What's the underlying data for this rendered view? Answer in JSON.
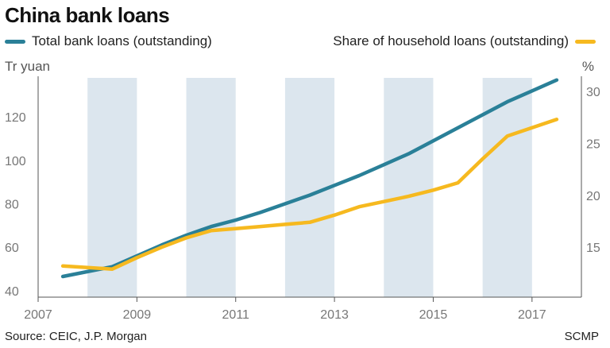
{
  "header": {
    "title": "China bank loans",
    "unit_left": "Tr yuan",
    "unit_right": "%"
  },
  "footer": {
    "source": "Source: CEIC, J.P. Morgan",
    "brand": "SCMP"
  },
  "colors": {
    "total": "#2a8098",
    "household": "#f6b91f",
    "band": "#dce6ee",
    "axis": "#555555"
  },
  "chart_data": {
    "type": "line",
    "x_ticks": [
      "2007",
      "2009",
      "2011",
      "2013",
      "2015",
      "2017"
    ],
    "y_left_ticks": [
      "40",
      "60",
      "80",
      "100",
      "120"
    ],
    "y_right_ticks": [
      "15",
      "20",
      "25",
      "30"
    ],
    "ylim_left": [
      37,
      138
    ],
    "ylim_right": [
      10.2,
      31.3
    ],
    "xlim": [
      2007,
      2018
    ],
    "shaded_bands": [
      [
        2008,
        2009
      ],
      [
        2010,
        2011
      ],
      [
        2012,
        2013
      ],
      [
        2014,
        2015
      ],
      [
        2016,
        2017
      ]
    ],
    "series": [
      {
        "name": "Total bank loans (outstanding)",
        "axis": "left",
        "color": "#2a8098",
        "x": [
          2007.5,
          2008.5,
          2009.0,
          2009.5,
          2010.0,
          2010.5,
          2011.0,
          2011.5,
          2012.0,
          2012.5,
          2013.0,
          2013.5,
          2014.0,
          2014.5,
          2015.0,
          2015.5,
          2016.0,
          2016.5,
          2017.0,
          2017.5
        ],
        "values": [
          46.5,
          51,
          56,
          61,
          65.5,
          69.5,
          72.5,
          76,
          80,
          84,
          88.5,
          93,
          98,
          103,
          109,
          115,
          121,
          127,
          132,
          137
        ]
      },
      {
        "name": "Share of household loans (outstanding)",
        "axis": "right",
        "color": "#f6b91f",
        "x": [
          2007.5,
          2008.5,
          2009.0,
          2009.5,
          2010.0,
          2010.5,
          2011.0,
          2011.5,
          2012.0,
          2012.5,
          2013.0,
          2013.5,
          2014.0,
          2014.5,
          2015.0,
          2015.5,
          2016.0,
          2016.5,
          2017.0,
          2017.5
        ],
        "values": [
          13.2,
          12.9,
          14.0,
          15.0,
          15.9,
          16.6,
          16.8,
          17.0,
          17.2,
          17.4,
          18.1,
          18.9,
          19.4,
          19.9,
          20.5,
          21.2,
          23.5,
          25.7,
          26.5,
          27.3
        ]
      }
    ]
  }
}
